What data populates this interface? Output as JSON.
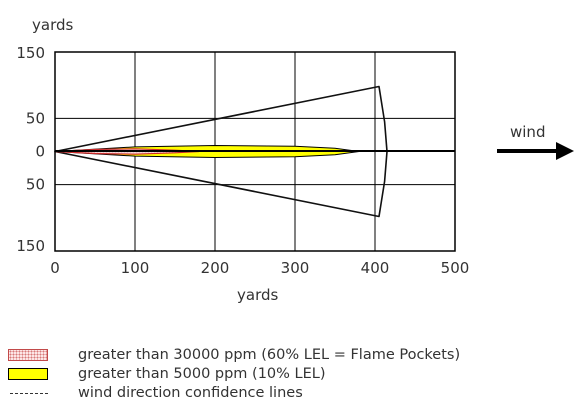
{
  "chart_data": {
    "type": "area",
    "xlabel": "yards",
    "ylabel": "yards",
    "xlim": [
      0,
      500
    ],
    "ylim": [
      -150,
      150
    ],
    "x_ticks": [
      0,
      100,
      200,
      300,
      400,
      500
    ],
    "x_tick_labels": [
      "0",
      "100",
      "200",
      "300",
      "400",
      "500"
    ],
    "y_ticks": [
      150,
      50,
      0,
      -50,
      -150
    ],
    "y_tick_labels": [
      "150",
      "50",
      "0",
      "50",
      "150"
    ],
    "grid": true,
    "legend_position": "bottom",
    "series": [
      {
        "name": "greater than 30000 ppm (60% LEL = Flame Pockets)",
        "color": "#cc2b2b",
        "fill": "#f3c2c2",
        "points": [
          [
            0,
            0
          ],
          [
            50,
            3
          ],
          [
            100,
            4
          ],
          [
            150,
            2
          ],
          [
            180,
            0
          ],
          [
            150,
            -2
          ],
          [
            100,
            -4
          ],
          [
            50,
            -3
          ],
          [
            0,
            0
          ]
        ]
      },
      {
        "name": "greater than 5000 ppm (10% LEL)",
        "color": "#000000",
        "fill": "#ffff00",
        "points": [
          [
            0,
            0
          ],
          [
            100,
            7
          ],
          [
            200,
            9
          ],
          [
            300,
            8
          ],
          [
            350,
            5
          ],
          [
            380,
            0
          ],
          [
            350,
            -5
          ],
          [
            300,
            -8
          ],
          [
            200,
            -9
          ],
          [
            100,
            -7
          ],
          [
            0,
            0
          ]
        ]
      },
      {
        "name": "wind direction confidence lines",
        "color": "#111111",
        "style": "solid",
        "points": [
          [
            0,
            0
          ],
          [
            405,
            98
          ],
          [
            412,
            45
          ],
          [
            415,
            0
          ],
          [
            412,
            -45
          ],
          [
            405,
            -98
          ],
          [
            0,
            0
          ]
        ]
      }
    ],
    "annotations": [
      {
        "text": "wind",
        "position": "right of plot, centered on 0",
        "arrow": "right"
      }
    ]
  },
  "labels": {
    "y_axis_title": "yards",
    "x_axis_title": "yards",
    "wind": "wind"
  },
  "legend": [
    {
      "swatch": "dotted-red",
      "text": "greater than 30000 ppm (60% LEL = Flame Pockets)"
    },
    {
      "swatch": "yellow",
      "text": "greater than 5000 ppm (10% LEL)"
    },
    {
      "swatch": "dashed-line",
      "text": "wind direction confidence lines"
    }
  ]
}
